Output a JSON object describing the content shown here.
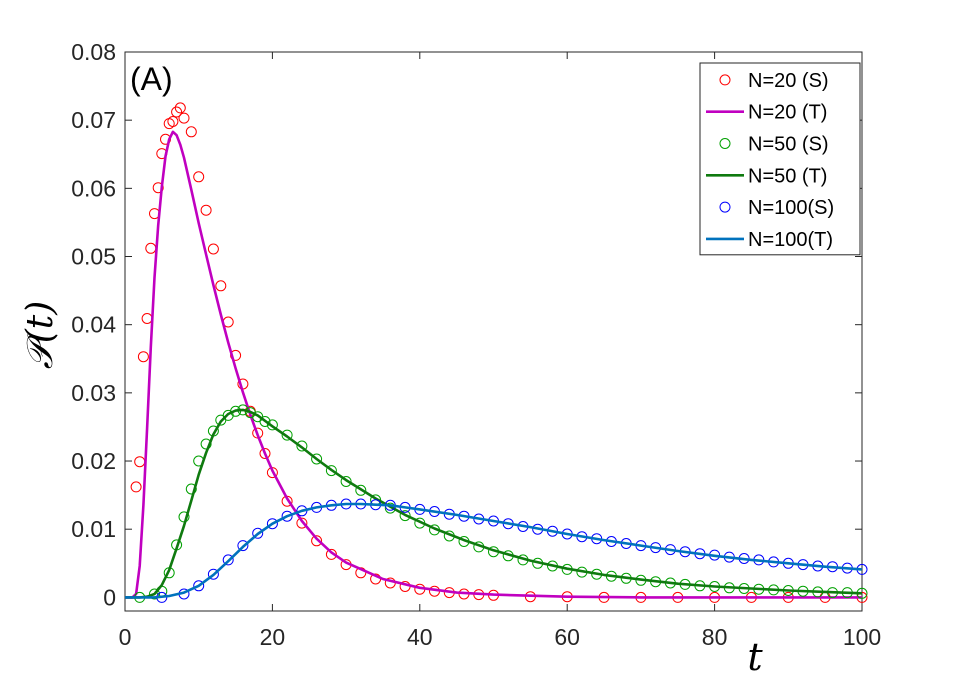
{
  "chart_data": {
    "type": "line",
    "panel_label": "(A)",
    "xlabel": "t",
    "ylabel": "𝒫(t)",
    "xlim": [
      0,
      100
    ],
    "ylim": [
      -0.002,
      0.08
    ],
    "xticks": [
      0,
      20,
      40,
      60,
      80,
      100
    ],
    "xtick_labels": [
      "0",
      "20",
      "40",
      "60",
      "80",
      "100"
    ],
    "yticks": [
      0,
      0.01,
      0.02,
      0.03,
      0.04,
      0.05,
      0.06,
      0.07,
      0.08
    ],
    "ytick_labels": [
      "0",
      "0.01",
      "0.02",
      "0.03",
      "0.04",
      "0.05",
      "0.06",
      "0.07",
      "0.08"
    ],
    "grid": false,
    "legend_position": "top-right",
    "series": [
      {
        "name": "N=20 (S)",
        "kind": "markers",
        "color": "#ff0000",
        "x": [
          1.5,
          2,
          2.5,
          3,
          3.5,
          4,
          4.5,
          5,
          5.5,
          6,
          6.5,
          7,
          7.5,
          8,
          9,
          10,
          11,
          12,
          13,
          14,
          15,
          16,
          17,
          18,
          19,
          20,
          22,
          24,
          26,
          28,
          30,
          32,
          34,
          36,
          38,
          40,
          42,
          44,
          46,
          48,
          50,
          55,
          60,
          65,
          70,
          75,
          80,
          85,
          90,
          95,
          100
        ],
        "y": [
          0.0162,
          0.0199,
          0.0353,
          0.0409,
          0.0512,
          0.0563,
          0.0601,
          0.0651,
          0.0672,
          0.0695,
          0.0698,
          0.0712,
          0.0718,
          0.0703,
          0.0683,
          0.0617,
          0.0568,
          0.0511,
          0.0457,
          0.0404,
          0.0355,
          0.0313,
          0.0273,
          0.0241,
          0.0211,
          0.0183,
          0.0141,
          0.0109,
          0.0083,
          0.0063,
          0.0048,
          0.0036,
          0.0027,
          0.0021,
          0.0016,
          0.0012,
          0.0009,
          0.0007,
          0.0005,
          0.0004,
          0.0003,
          0.0001,
          0.0001,
          0.0,
          0.0,
          0.0,
          0.0,
          0.0,
          0.0,
          0.0,
          0.0
        ]
      },
      {
        "name": "N=20 (T)",
        "kind": "line",
        "color": "#c000c0",
        "x": [
          0,
          1,
          1.5,
          2,
          2.5,
          3,
          3.5,
          4,
          4.5,
          5,
          5.5,
          6,
          6.5,
          7,
          7.5,
          8,
          9,
          10,
          11,
          12,
          13,
          14,
          15,
          16,
          17,
          18,
          19,
          20,
          22,
          24,
          26,
          28,
          30,
          35,
          40,
          45,
          50,
          60,
          70,
          80,
          90,
          100
        ],
        "y": [
          0,
          0,
          0.0005,
          0.0046,
          0.0135,
          0.0248,
          0.0367,
          0.0469,
          0.0546,
          0.0602,
          0.0647,
          0.0672,
          0.0683,
          0.0678,
          0.0664,
          0.0645,
          0.0598,
          0.0549,
          0.0503,
          0.0458,
          0.0415,
          0.0374,
          0.0336,
          0.0301,
          0.0268,
          0.0238,
          0.0211,
          0.0186,
          0.0145,
          0.0112,
          0.0086,
          0.0066,
          0.0051,
          0.0027,
          0.0014,
          0.0007,
          0.0004,
          0.0001,
          0.0,
          0.0,
          0.0,
          0.0
        ]
      },
      {
        "name": "N=50 (S)",
        "kind": "markers",
        "color": "#00a000",
        "x": [
          2,
          4,
          5,
          6,
          7,
          8,
          9,
          10,
          11,
          12,
          13,
          14,
          15,
          16,
          17,
          18,
          19,
          20,
          22,
          24,
          26,
          28,
          30,
          32,
          34,
          36,
          38,
          40,
          42,
          44,
          46,
          48,
          50,
          52,
          54,
          56,
          58,
          60,
          62,
          64,
          66,
          68,
          70,
          72,
          74,
          76,
          78,
          80,
          82,
          84,
          86,
          88,
          90,
          92,
          94,
          96,
          98,
          100
        ],
        "y": [
          0.0,
          0.0005,
          0.0009,
          0.0036,
          0.0077,
          0.0118,
          0.0159,
          0.02,
          0.0225,
          0.0244,
          0.026,
          0.0267,
          0.0273,
          0.0275,
          0.0271,
          0.0265,
          0.0258,
          0.0253,
          0.0238,
          0.0222,
          0.0203,
          0.0186,
          0.017,
          0.0157,
          0.0143,
          0.0131,
          0.012,
          0.0109,
          0.0099,
          0.009,
          0.0082,
          0.0074,
          0.0067,
          0.0061,
          0.0055,
          0.005,
          0.0046,
          0.0041,
          0.0037,
          0.0034,
          0.0031,
          0.0028,
          0.0025,
          0.0023,
          0.0021,
          0.0019,
          0.0017,
          0.0016,
          0.0014,
          0.0013,
          0.0012,
          0.0011,
          0.001,
          0.0009,
          0.0008,
          0.0007,
          0.0007,
          0.0006
        ]
      },
      {
        "name": "N=50 (T)",
        "kind": "line",
        "color": "#0f7a0f",
        "x": [
          0,
          2,
          3,
          4,
          5,
          6,
          7,
          8,
          9,
          10,
          11,
          12,
          13,
          14,
          15,
          16,
          17,
          18,
          19,
          20,
          22,
          24,
          26,
          28,
          30,
          34,
          38,
          42,
          46,
          50,
          55,
          60,
          65,
          70,
          75,
          80,
          85,
          90,
          95,
          100
        ],
        "y": [
          0,
          0,
          0.0001,
          0.0005,
          0.0018,
          0.004,
          0.0072,
          0.0105,
          0.0142,
          0.018,
          0.0212,
          0.0239,
          0.0258,
          0.0269,
          0.0274,
          0.0275,
          0.0272,
          0.0267,
          0.0259,
          0.0251,
          0.0236,
          0.022,
          0.0203,
          0.0187,
          0.0172,
          0.0145,
          0.0121,
          0.0101,
          0.0084,
          0.0069,
          0.0054,
          0.0042,
          0.0033,
          0.0026,
          0.002,
          0.0016,
          0.0013,
          0.001,
          0.0008,
          0.0006
        ]
      },
      {
        "name": "N=100(S)",
        "kind": "markers",
        "color": "#0000ff",
        "x": [
          5,
          8,
          10,
          12,
          14,
          16,
          18,
          20,
          22,
          24,
          26,
          28,
          30,
          32,
          34,
          36,
          38,
          40,
          42,
          44,
          46,
          48,
          50,
          52,
          54,
          56,
          58,
          60,
          62,
          64,
          66,
          68,
          70,
          72,
          74,
          76,
          78,
          80,
          82,
          84,
          86,
          88,
          90,
          92,
          94,
          96,
          98,
          100
        ],
        "y": [
          0.0,
          0.0005,
          0.0017,
          0.0034,
          0.0055,
          0.0076,
          0.0094,
          0.0108,
          0.0119,
          0.0127,
          0.0132,
          0.0135,
          0.0137,
          0.0137,
          0.0136,
          0.0135,
          0.0132,
          0.0129,
          0.0126,
          0.0122,
          0.0119,
          0.0115,
          0.0112,
          0.0108,
          0.0104,
          0.01,
          0.0097,
          0.0093,
          0.0089,
          0.0086,
          0.0082,
          0.0079,
          0.0076,
          0.0073,
          0.007,
          0.0067,
          0.0064,
          0.0062,
          0.0059,
          0.0057,
          0.0055,
          0.0052,
          0.005,
          0.0048,
          0.0046,
          0.0045,
          0.0043,
          0.0041
        ]
      },
      {
        "name": "N=100(T)",
        "kind": "line",
        "color": "#0072bd",
        "x": [
          0,
          4,
          6,
          8,
          10,
          12,
          14,
          16,
          18,
          20,
          22,
          24,
          26,
          28,
          30,
          32,
          34,
          36,
          38,
          40,
          45,
          50,
          55,
          60,
          65,
          70,
          75,
          80,
          85,
          90,
          95,
          100
        ],
        "y": [
          0,
          0,
          0.0002,
          0.0007,
          0.0017,
          0.0033,
          0.0053,
          0.0074,
          0.0093,
          0.0108,
          0.0119,
          0.0127,
          0.0132,
          0.0135,
          0.0137,
          0.0137,
          0.0136,
          0.0135,
          0.0132,
          0.0129,
          0.0121,
          0.0112,
          0.0103,
          0.0093,
          0.0084,
          0.0076,
          0.0068,
          0.0061,
          0.0055,
          0.005,
          0.0045,
          0.0041
        ]
      }
    ]
  }
}
